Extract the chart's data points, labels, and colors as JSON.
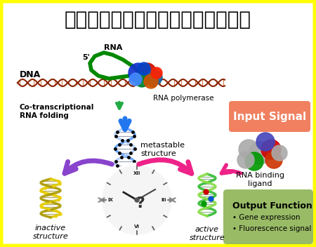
{
  "title": "核酸構造変化の核酸医工学への活用",
  "title_fontsize": 20,
  "background_color": "#ffffff",
  "border_color": "#ffff00",
  "border_linewidth": 5,
  "input_signal_text": "Input Signal",
  "input_signal_bg": "#f08060",
  "output_function_text": "Output Function",
  "output_bullet1": "Gene expression",
  "output_bullet2": "Fluorescence signal   etc.",
  "output_bg": "#99bb66",
  "label_cotranscriptional": "Co-transcriptional\nRNA folding",
  "label_rna_polymerase": "RNA polymerase",
  "label_metastable": "metastable\nstructure",
  "label_rna_binding": "RNA binding\nligand",
  "label_inactive": "inactive\nstructure",
  "label_active": "active\nstructure",
  "label_dna": "DNA",
  "label_rna": "RNA",
  "label_5prime": "5'",
  "arrow_down_color": "#2277ee",
  "arrow_left_color": "#8844cc",
  "arrow_right_color": "#ee2288",
  "arrow_green_color": "#22aa44",
  "dna_color": "#992211",
  "rna_color": "#008800"
}
